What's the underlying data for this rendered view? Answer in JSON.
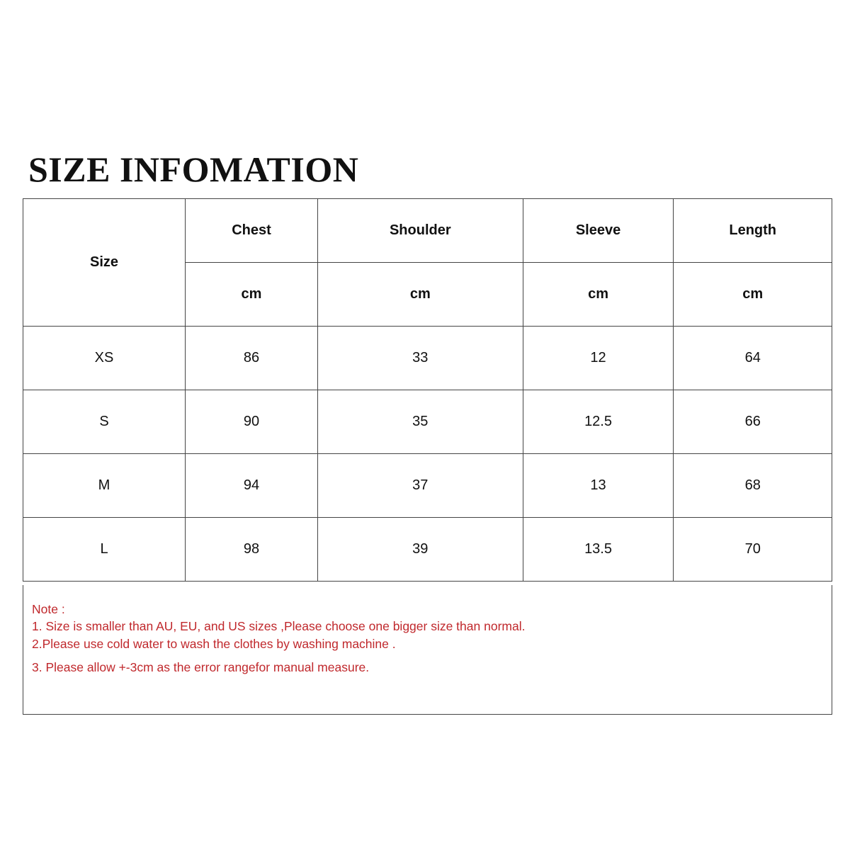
{
  "title": "SIZE INFOMATION",
  "table": {
    "size_header": "Size",
    "columns": [
      {
        "label": "Chest",
        "unit": "cm"
      },
      {
        "label": "Shoulder",
        "unit": "cm"
      },
      {
        "label": "Sleeve",
        "unit": "cm"
      },
      {
        "label": "Length",
        "unit": "cm"
      }
    ],
    "rows": [
      [
        "XS",
        "86",
        "33",
        "12",
        "64"
      ],
      [
        "S",
        "90",
        "35",
        "12.5",
        "66"
      ],
      [
        "M",
        "94",
        "37",
        "13",
        "68"
      ],
      [
        "L",
        "98",
        "39",
        "13.5",
        "70"
      ]
    ]
  },
  "notes": {
    "heading": "Note :",
    "items": [
      "1. Size is smaller than AU, EU, and US sizes ,Please choose one bigger size than normal.",
      "2.Please use cold water to wash the clothes by washing machine .",
      "3. Please allow +-3cm as the error rangefor manual measure."
    ],
    "color": "#c0282c"
  }
}
